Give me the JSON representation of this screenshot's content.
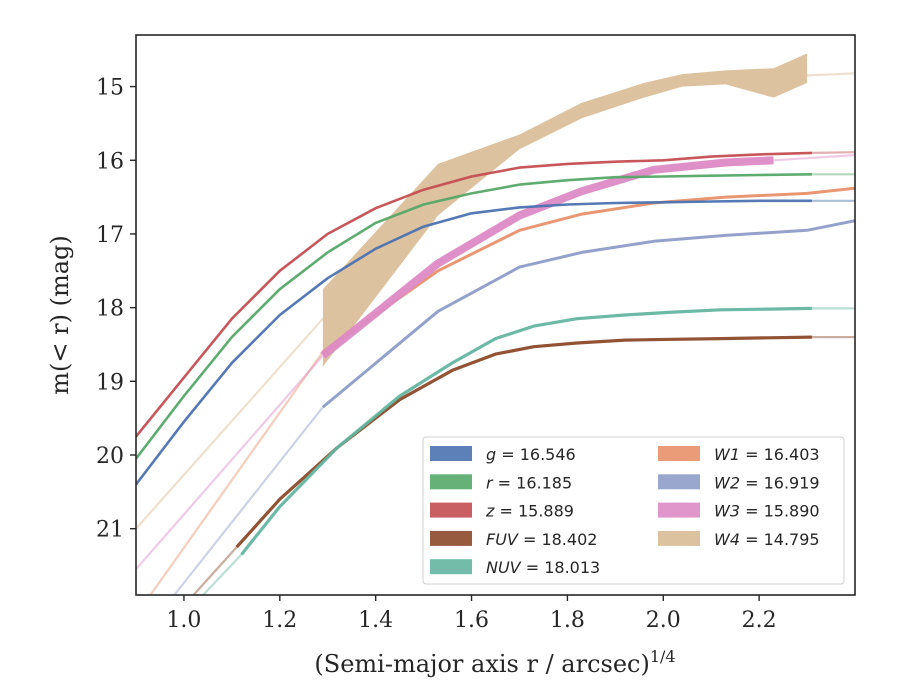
{
  "chart_data": {
    "type": "line",
    "xlabel": "(Semi-major axis r / arcsec)",
    "xlabel_italic": "r",
    "xlabel_exponent": "1/4",
    "ylabel": "m(< r) (mag)",
    "xlim": [
      0.9,
      2.4
    ],
    "ylim": [
      21.9,
      14.3
    ],
    "y_inverted": true,
    "grid": false,
    "legend_position": "lower-right",
    "x_ticks": [
      1.0,
      1.2,
      1.4,
      1.6,
      1.8,
      2.0,
      2.2
    ],
    "x_tick_labels": [
      "1.0",
      "1.2",
      "1.4",
      "1.6",
      "1.8",
      "2.0",
      "2.2"
    ],
    "y_ticks": [
      15,
      16,
      17,
      18,
      19,
      20,
      21
    ],
    "y_tick_labels": [
      "15",
      "16",
      "17",
      "18",
      "19",
      "20",
      "21"
    ],
    "series": [
      {
        "name": "g",
        "label": "g = 16.546",
        "color": "#4c72b0",
        "width": 2.6,
        "x": [
          0.9,
          1.0,
          1.1,
          1.2,
          1.3,
          1.4,
          1.5,
          1.6,
          1.7,
          1.8,
          1.9,
          2.0,
          2.1,
          2.2,
          2.31
        ],
        "y": [
          20.4,
          19.55,
          18.75,
          18.1,
          17.6,
          17.2,
          16.9,
          16.72,
          16.64,
          16.6,
          16.58,
          16.57,
          16.56,
          16.55,
          16.55
        ],
        "ext_x": [
          2.31,
          2.4
        ],
        "ext_y": [
          16.55,
          16.55
        ]
      },
      {
        "name": "r",
        "label": "r = 16.185",
        "color": "#55a868",
        "width": 2.6,
        "x": [
          0.9,
          1.0,
          1.1,
          1.2,
          1.3,
          1.4,
          1.5,
          1.6,
          1.7,
          1.8,
          1.9,
          2.0,
          2.1,
          2.2,
          2.31
        ],
        "y": [
          20.05,
          19.2,
          18.4,
          17.75,
          17.25,
          16.85,
          16.6,
          16.45,
          16.33,
          16.27,
          16.23,
          16.22,
          16.21,
          16.2,
          16.19
        ],
        "ext_x": [
          2.31,
          2.4
        ],
        "ext_y": [
          16.19,
          16.19
        ]
      },
      {
        "name": "z",
        "label": "z = 15.889",
        "color": "#c44e52",
        "width": 2.6,
        "x": [
          0.9,
          1.0,
          1.1,
          1.2,
          1.3,
          1.4,
          1.5,
          1.6,
          1.7,
          1.8,
          1.9,
          2.0,
          2.1,
          2.2,
          2.31
        ],
        "y": [
          19.75,
          18.95,
          18.15,
          17.5,
          17.0,
          16.65,
          16.4,
          16.22,
          16.1,
          16.05,
          16.02,
          16.0,
          15.95,
          15.92,
          15.9
        ],
        "ext_x": [
          2.31,
          2.4
        ],
        "ext_y": [
          15.9,
          15.89
        ]
      },
      {
        "name": "FUV",
        "label": "FUV = 18.402",
        "color": "#8c4a2a",
        "width": 3.2,
        "x": [
          1.11,
          1.2,
          1.32,
          1.45,
          1.56,
          1.65,
          1.73,
          1.82,
          1.92,
          2.02,
          2.12,
          2.22,
          2.31
        ],
        "y": [
          21.25,
          20.6,
          19.9,
          19.25,
          18.85,
          18.63,
          18.53,
          18.48,
          18.44,
          18.43,
          18.42,
          18.41,
          18.4
        ],
        "ext_x": [
          1.02,
          1.11,
          2.31,
          2.4
        ],
        "ext_y": [
          21.9,
          21.25,
          18.4,
          18.4
        ]
      },
      {
        "name": "NUV",
        "label": "NUV = 18.013",
        "color": "#64b5a0",
        "width": 3.2,
        "x": [
          1.12,
          1.2,
          1.32,
          1.45,
          1.56,
          1.65,
          1.73,
          1.82,
          1.92,
          2.02,
          2.12,
          2.22,
          2.31
        ],
        "y": [
          21.35,
          20.7,
          19.9,
          19.2,
          18.75,
          18.42,
          18.25,
          18.15,
          18.1,
          18.06,
          18.03,
          18.02,
          18.01
        ],
        "ext_x": [
          1.04,
          1.12,
          2.31,
          2.4
        ],
        "ext_y": [
          21.9,
          21.35,
          18.01,
          18.01
        ]
      },
      {
        "name": "W1",
        "label": "W1 = 16.403",
        "color": "#e8916a",
        "width": 3.0,
        "x": [
          1.29,
          1.53,
          1.7,
          1.83,
          1.98,
          2.13,
          2.3,
          2.4
        ],
        "y": [
          18.6,
          17.5,
          16.95,
          16.73,
          16.58,
          16.5,
          16.45,
          16.38
        ],
        "ext_x": [
          0.93,
          1.29
        ],
        "ext_y": [
          21.9,
          18.6
        ]
      },
      {
        "name": "W2",
        "label": "W2 = 16.919",
        "color": "#8e9cc8",
        "width": 3.0,
        "x": [
          1.29,
          1.53,
          1.7,
          1.83,
          1.98,
          2.13,
          2.3,
          2.4
        ],
        "y": [
          19.35,
          18.05,
          17.45,
          17.25,
          17.1,
          17.02,
          16.95,
          16.82
        ],
        "ext_x": [
          0.98,
          1.29,
          2.4,
          2.4
        ],
        "ext_y": [
          21.9,
          19.35,
          16.92,
          16.92
        ]
      },
      {
        "name": "W3",
        "label": "W3 = 15.890",
        "color": "#dd8ac5",
        "width": 8.0,
        "x": [
          1.29,
          1.53,
          1.7,
          1.83,
          1.98,
          2.13,
          2.23
        ],
        "y": [
          18.65,
          17.4,
          16.75,
          16.42,
          16.13,
          16.03,
          16.0
        ],
        "ext_x": [
          0.9,
          1.29,
          2.23,
          2.4
        ],
        "ext_y": [
          21.55,
          18.65,
          16.0,
          15.93
        ]
      },
      {
        "name": "W4",
        "label": "W4 = 14.795",
        "color": "#d8bb94",
        "band": true,
        "x": [
          1.29,
          1.53,
          1.7,
          1.83,
          1.96,
          2.04,
          2.13,
          2.23,
          2.3
        ],
        "y_low": [
          18.8,
          16.75,
          15.85,
          15.43,
          15.15,
          15.0,
          14.97,
          15.15,
          14.95
        ],
        "y_high": [
          17.75,
          16.05,
          15.65,
          15.22,
          14.95,
          14.83,
          14.78,
          14.75,
          14.55
        ],
        "ext_x": [
          0.9,
          1.29,
          2.3,
          2.4
        ],
        "ext_y": [
          21.0,
          18.15,
          14.85,
          14.82
        ]
      }
    ]
  }
}
